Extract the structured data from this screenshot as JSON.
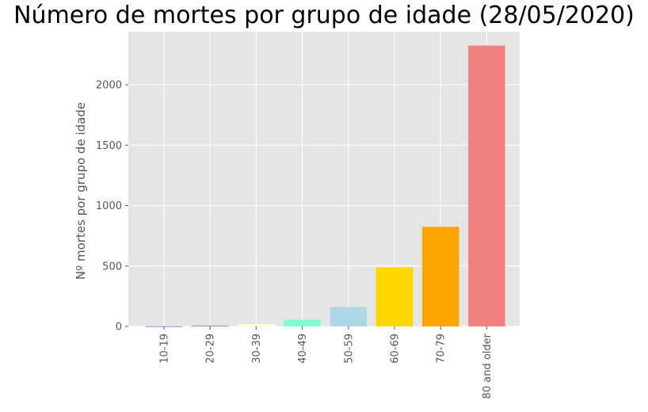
{
  "chart_data": {
    "type": "bar",
    "title": "Número de mortes por grupo de idade (28/05/2020)",
    "xlabel": "",
    "ylabel": "Nº mortes por grupo de idade",
    "categories": [
      "10-19",
      "20-29",
      "30-39",
      "40-49",
      "50-59",
      "60-69",
      "70-79",
      "80 and older"
    ],
    "values": [
      1,
      7,
      20,
      55,
      160,
      490,
      825,
      2325
    ],
    "bar_colors": [
      "#7B68EE",
      "#BC8F8F",
      "#FFFFE0",
      "#7FFFD4",
      "#ADD8E6",
      "#FFD700",
      "#FFA500",
      "#F08080"
    ],
    "ylim": [
      0,
      2440
    ],
    "yticks": [
      0,
      500,
      1000,
      1500,
      2000
    ],
    "grid": true,
    "background": "#E5E5E5",
    "grid_color": "#FFFFFF"
  }
}
